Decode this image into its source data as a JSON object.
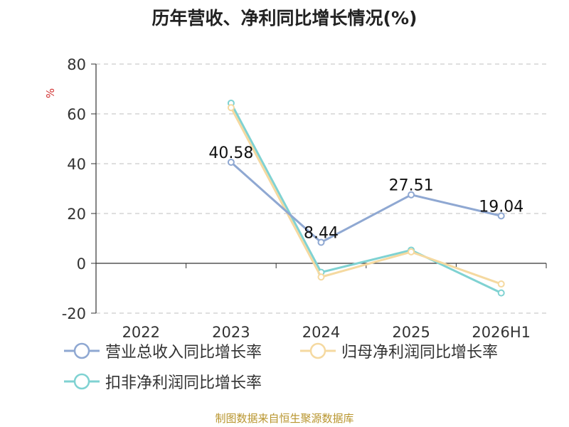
{
  "title": "历年营收、净利同比增长情况(%)",
  "source": "制图数据来自恒生聚源数据库",
  "chart_data": {
    "type": "line",
    "title": "历年营收、净利同比增长情况(%)",
    "ylabel": "%",
    "xlabel": "",
    "categories": [
      "2022",
      "2023",
      "2024",
      "2025",
      "2026H1"
    ],
    "ylim": [
      -20,
      80
    ],
    "yticks": [
      -20,
      0,
      20,
      40,
      60,
      80
    ],
    "grid": true,
    "legend_position": "bottom-left",
    "series": [
      {
        "name": "营业总收入同比增长率",
        "color": "#8fa8d2",
        "values": [
          null,
          40.58,
          8.44,
          27.51,
          19.04
        ],
        "show_labels": true
      },
      {
        "name": "归母净利润同比增长率",
        "color": "#f5d9a0",
        "values": [
          null,
          62.5,
          -5.5,
          4.6,
          -8.3
        ],
        "show_labels": false
      },
      {
        "name": "扣非净利润同比增长率",
        "color": "#7fd2d2",
        "values": [
          null,
          64.3,
          -3.6,
          5.3,
          -11.9
        ],
        "show_labels": false
      }
    ]
  }
}
